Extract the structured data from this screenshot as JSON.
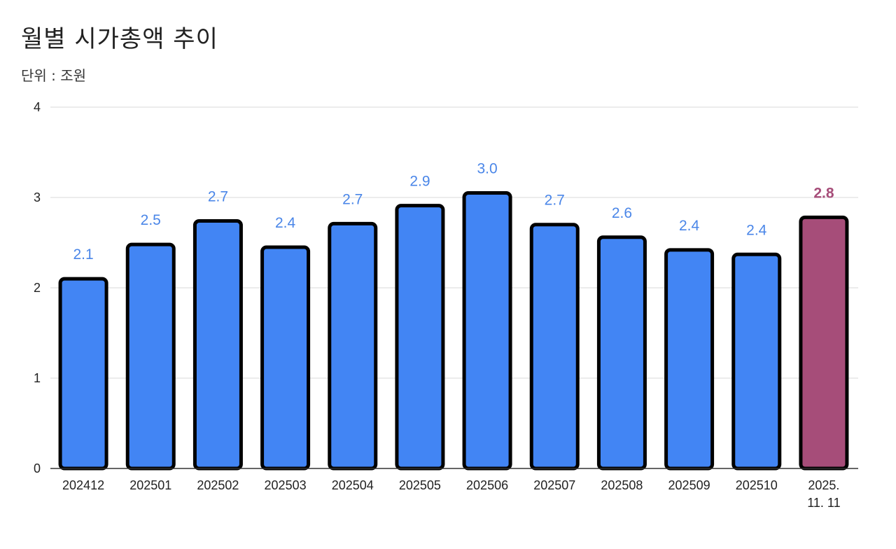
{
  "chart_data": {
    "type": "bar",
    "title": "월별 시가총액 추이",
    "subtitle": "단위 : 조원",
    "xlabel": "",
    "ylabel": "",
    "ylim": [
      0,
      4
    ],
    "yticks": [
      "0",
      "1",
      "2",
      "3",
      "4"
    ],
    "grid": true,
    "legend": "none",
    "categories": [
      "202412",
      "202501",
      "202502",
      "202503",
      "202504",
      "202505",
      "202506",
      "202507",
      "202508",
      "202509",
      "202510",
      "2025.\n11. 11"
    ],
    "values": [
      2.1,
      2.48,
      2.74,
      2.45,
      2.71,
      2.91,
      3.05,
      2.7,
      2.56,
      2.42,
      2.37,
      2.78
    ],
    "data_labels": [
      "2.1",
      "2.5",
      "2.7",
      "2.4",
      "2.7",
      "2.9",
      "3.0",
      "2.7",
      "2.6",
      "2.4",
      "2.4",
      "2.8"
    ],
    "highlight_index": 11,
    "colors": {
      "bar": "#4285f4",
      "highlight_bar": "#a64d79",
      "label": "#4a86e8",
      "highlight_label": "#a64d79",
      "bar_outline": "#000000",
      "grid": "#d9d9d9",
      "axis": "#333333"
    }
  }
}
